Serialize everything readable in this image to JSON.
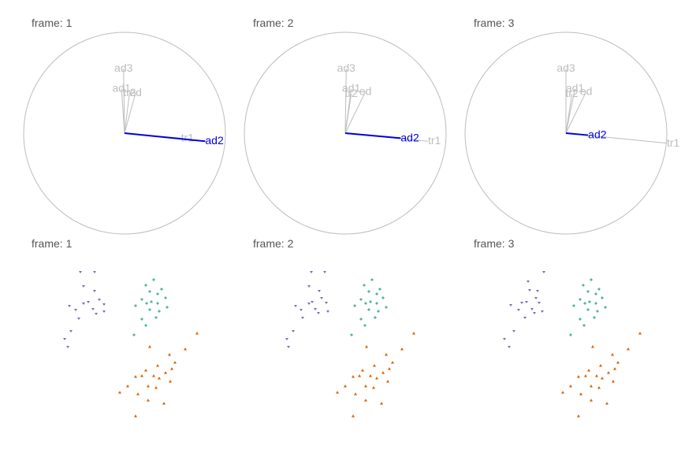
{
  "frame_label_prefix": "frame:",
  "colors": {
    "circle": "#bdbdbd",
    "axis_inactive": "#bdbdbd",
    "axis_active": "#0000dd",
    "title": "#555555",
    "group_a": "#7b6fb0",
    "group_b": "#1b9e77",
    "group_c": "#d95f02"
  },
  "chart_data": [
    {
      "type": "biplot-axes",
      "frame": "1",
      "frame_title": "frame: 1",
      "active_axis": "ad2",
      "axes": [
        {
          "name": "ad3",
          "x": -0.01,
          "y": 0.64
        },
        {
          "name": "ad1",
          "x": -0.03,
          "y": 0.44
        },
        {
          "name": "tr2",
          "x": 0.05,
          "y": 0.4
        },
        {
          "name": "ed",
          "x": 0.11,
          "y": 0.4
        },
        {
          "name": "tr1",
          "x": 0.56,
          "y": -0.05
        },
        {
          "name": "ad2",
          "x": 0.8,
          "y": -0.08
        }
      ]
    },
    {
      "type": "biplot-axes",
      "frame": "2",
      "frame_title": "frame: 2",
      "active_axis": "ad2",
      "axes": [
        {
          "name": "ad3",
          "x": 0.01,
          "y": 0.64
        },
        {
          "name": "ad1",
          "x": 0.06,
          "y": 0.44
        },
        {
          "name": "tr2",
          "x": 0.06,
          "y": 0.39
        },
        {
          "name": "ed",
          "x": 0.2,
          "y": 0.41
        },
        {
          "name": "tr1",
          "x": 0.82,
          "y": -0.08
        },
        {
          "name": "ad2",
          "x": 0.55,
          "y": -0.05
        }
      ]
    },
    {
      "type": "biplot-axes",
      "frame": "3",
      "frame_title": "frame: 3",
      "active_axis": "ad2",
      "axes": [
        {
          "name": "ad3",
          "x": 0.0,
          "y": 0.64
        },
        {
          "name": "ad1",
          "x": 0.09,
          "y": 0.44
        },
        {
          "name": "tr2",
          "x": 0.06,
          "y": 0.39
        },
        {
          "name": "ed",
          "x": 0.2,
          "y": 0.41
        },
        {
          "name": "tr1",
          "x": 1.0,
          "y": -0.1
        },
        {
          "name": "ad2",
          "x": 0.22,
          "y": -0.02
        }
      ]
    },
    {
      "type": "scatter",
      "frame": "1",
      "frame_title": "frame: 1",
      "xlim": [
        0,
        220
      ],
      "ylim": [
        0,
        220
      ],
      "series": [
        {
          "group": "a",
          "marker": "v",
          "points": [
            [
              62,
              205
            ],
            [
              80,
              205
            ],
            [
              66,
              187
            ],
            [
              80,
              181
            ],
            [
              72,
              167
            ],
            [
              86,
              170
            ],
            [
              92,
              164
            ],
            [
              66,
              165
            ],
            [
              48,
              162
            ],
            [
              56,
              157
            ],
            [
              60,
              146
            ],
            [
              78,
              158
            ],
            [
              82,
              152
            ],
            [
              92,
              155
            ],
            [
              50,
              130
            ],
            [
              42,
              120
            ],
            [
              46,
              110
            ]
          ]
        },
        {
          "group": "b",
          "marker": "+",
          "points": [
            [
              155,
              195
            ],
            [
              145,
              188
            ],
            [
              165,
              183
            ],
            [
              150,
              180
            ],
            [
              160,
              177
            ],
            [
              170,
              172
            ],
            [
              140,
              170
            ],
            [
              152,
              167
            ],
            [
              146,
              165
            ],
            [
              160,
              165
            ],
            [
              132,
              162
            ],
            [
              150,
              157
            ],
            [
              162,
              155
            ],
            [
              172,
              160
            ],
            [
              140,
              145
            ],
            [
              158,
              147
            ],
            [
              145,
              137
            ],
            [
              130,
              125
            ]
          ]
        },
        {
          "group": "c",
          "marker": "^",
          "points": [
            [
              210,
              127
            ],
            [
              195,
              107
            ],
            [
              150,
              110
            ],
            [
              175,
              100
            ],
            [
              182,
              90
            ],
            [
              160,
              86
            ],
            [
              178,
              82
            ],
            [
              145,
              80
            ],
            [
              170,
              77
            ],
            [
              155,
              73
            ],
            [
              140,
              73
            ],
            [
              132,
              72
            ],
            [
              162,
              70
            ],
            [
              176,
              66
            ],
            [
              122,
              60
            ],
            [
              148,
              60
            ],
            [
              158,
              58
            ],
            [
              112,
              52
            ],
            [
              135,
              50
            ],
            [
              148,
              42
            ],
            [
              168,
              38
            ],
            [
              132,
              22
            ]
          ]
        }
      ]
    },
    {
      "type": "scatter",
      "frame": "2",
      "frame_title": "frame: 2",
      "xlim": [
        0,
        220
      ],
      "ylim": [
        0,
        220
      ],
      "series": [
        {
          "group": "a",
          "marker": "v",
          "points": [
            [
              75,
              205
            ],
            [
              92,
              205
            ],
            [
              72,
              187
            ],
            [
              85,
              181
            ],
            [
              76,
              167
            ],
            [
              88,
              172
            ],
            [
              94,
              166
            ],
            [
              72,
              165
            ],
            [
              55,
              162
            ],
            [
              62,
              157
            ],
            [
              64,
              147
            ],
            [
              80,
              158
            ],
            [
              84,
              153
            ],
            [
              96,
              155
            ],
            [
              52,
              130
            ],
            [
              44,
              120
            ],
            [
              46,
              110
            ]
          ]
        },
        {
          "group": "b",
          "marker": "+",
          "points": [
            [
              152,
              195
            ],
            [
              142,
              188
            ],
            [
              162,
              183
            ],
            [
              148,
              180
            ],
            [
              158,
              177
            ],
            [
              166,
              172
            ],
            [
              138,
              170
            ],
            [
              150,
              167
            ],
            [
              144,
              165
            ],
            [
              158,
              165
            ],
            [
              130,
              162
            ],
            [
              148,
              157
            ],
            [
              160,
              155
            ],
            [
              170,
              160
            ],
            [
              138,
              145
            ],
            [
              156,
              147
            ],
            [
              143,
              137
            ],
            [
              126,
              125
            ]
          ]
        },
        {
          "group": "c",
          "marker": "^",
          "points": [
            [
              205,
              127
            ],
            [
              190,
              107
            ],
            [
              145,
              110
            ],
            [
              170,
              100
            ],
            [
              178,
              90
            ],
            [
              155,
              86
            ],
            [
              174,
              82
            ],
            [
              140,
              80
            ],
            [
              166,
              77
            ],
            [
              150,
              73
            ],
            [
              136,
              73
            ],
            [
              128,
              72
            ],
            [
              158,
              70
            ],
            [
              172,
              66
            ],
            [
              118,
              60
            ],
            [
              144,
              60
            ],
            [
              154,
              58
            ],
            [
              108,
              52
            ],
            [
              131,
              50
            ],
            [
              144,
              42
            ],
            [
              164,
              38
            ],
            [
              128,
              22
            ]
          ]
        }
      ]
    },
    {
      "type": "scatter",
      "frame": "3",
      "frame_title": "frame: 3",
      "xlim": [
        0,
        220
      ],
      "ylim": [
        0,
        220
      ],
      "series": [
        {
          "group": "a",
          "marker": "v",
          "points": [
            [
              90,
              205
            ],
            [
              70,
              193
            ],
            [
              72,
              182
            ],
            [
              82,
              181
            ],
            [
              68,
              167
            ],
            [
              80,
              172
            ],
            [
              84,
              166
            ],
            [
              62,
              166
            ],
            [
              48,
              163
            ],
            [
              58,
              157
            ],
            [
              66,
              147
            ],
            [
              75,
              158
            ],
            [
              78,
              153
            ],
            [
              88,
              155
            ],
            [
              52,
              130
            ],
            [
              40,
              120
            ],
            [
              46,
              110
            ]
          ]
        },
        {
          "group": "b",
          "marker": "+",
          "points": [
            [
              150,
              195
            ],
            [
              140,
              188
            ],
            [
              160,
              183
            ],
            [
              146,
              180
            ],
            [
              156,
              177
            ],
            [
              164,
              172
            ],
            [
              136,
              170
            ],
            [
              148,
              167
            ],
            [
              142,
              165
            ],
            [
              156,
              165
            ],
            [
              128,
              162
            ],
            [
              146,
              157
            ],
            [
              158,
              155
            ],
            [
              168,
              160
            ],
            [
              136,
              145
            ],
            [
              154,
              147
            ],
            [
              141,
              137
            ],
            [
              124,
              125
            ]
          ]
        },
        {
          "group": "c",
          "marker": "^",
          "points": [
            [
              212,
              127
            ],
            [
              197,
              107
            ],
            [
              152,
              110
            ],
            [
              177,
              100
            ],
            [
              184,
              90
            ],
            [
              162,
              86
            ],
            [
              180,
              82
            ],
            [
              147,
              80
            ],
            [
              172,
              77
            ],
            [
              157,
              73
            ],
            [
              143,
              73
            ],
            [
              134,
              72
            ],
            [
              164,
              70
            ],
            [
              178,
              66
            ],
            [
              124,
              60
            ],
            [
              150,
              60
            ],
            [
              160,
              58
            ],
            [
              114,
              52
            ],
            [
              137,
              50
            ],
            [
              150,
              42
            ],
            [
              170,
              38
            ],
            [
              134,
              22
            ]
          ]
        }
      ]
    }
  ]
}
